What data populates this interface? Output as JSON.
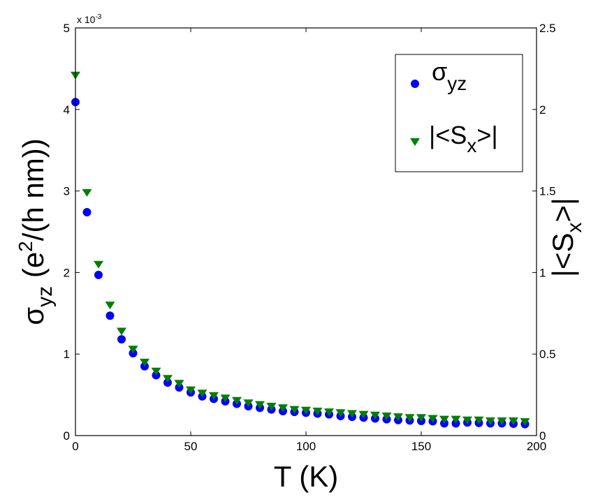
{
  "chart_data": {
    "type": "scatter",
    "title": "",
    "xlabel": "T (K)",
    "ylabel_left": {
      "main": "σ",
      "sub": "yz",
      "rest": " (e",
      "sup": "2",
      "tail": "/(h nm))"
    },
    "ylabel_right": {
      "main": "|<S",
      "sub": "x",
      "tail": ">|"
    },
    "left_exponent": {
      "base": "x 10",
      "exp": "-3"
    },
    "xlim": [
      0,
      200
    ],
    "ylim_left": [
      0,
      5
    ],
    "ylim_right": [
      0,
      2.5
    ],
    "x_ticks": [
      "0",
      "50",
      "100",
      "150",
      "200"
    ],
    "left_ticks": [
      "0",
      "1",
      "2",
      "3",
      "4",
      "5"
    ],
    "right_ticks": [
      "0",
      "0.5",
      "1",
      "1.5",
      "2",
      "2.5"
    ],
    "grid": false,
    "legend_position": "top-right",
    "x": [
      0,
      5,
      10,
      15,
      20,
      25,
      30,
      35,
      40,
      45,
      50,
      55,
      60,
      65,
      70,
      75,
      80,
      85,
      90,
      95,
      100,
      105,
      110,
      115,
      120,
      125,
      130,
      135,
      140,
      145,
      150,
      155,
      160,
      165,
      170,
      175,
      180,
      185,
      190,
      195
    ],
    "series": [
      {
        "name": "σyz",
        "legend": {
          "main": "σ",
          "sub": "yz"
        },
        "axis": "left",
        "marker": "circle",
        "color": "#0000ff",
        "values": [
          4.09,
          2.74,
          1.97,
          1.47,
          1.18,
          1.01,
          0.85,
          0.74,
          0.65,
          0.59,
          0.53,
          0.48,
          0.45,
          0.42,
          0.39,
          0.36,
          0.34,
          0.32,
          0.3,
          0.29,
          0.28,
          0.27,
          0.26,
          0.24,
          0.23,
          0.22,
          0.21,
          0.2,
          0.19,
          0.185,
          0.18,
          0.175,
          0.15,
          0.15,
          0.16,
          0.155,
          0.15,
          0.15,
          0.145,
          0.14
        ]
      },
      {
        "name": "|<Sx>|",
        "legend": {
          "main": "|<S",
          "sub": "x",
          "tail": ">|"
        },
        "axis": "right",
        "marker": "triangle-down",
        "color": "#008000",
        "values": [
          2.21,
          1.49,
          1.05,
          0.8,
          0.64,
          0.53,
          0.45,
          0.395,
          0.35,
          0.32,
          0.28,
          0.26,
          0.245,
          0.23,
          0.215,
          0.2,
          0.19,
          0.18,
          0.17,
          0.16,
          0.155,
          0.15,
          0.145,
          0.14,
          0.135,
          0.13,
          0.125,
          0.12,
          0.115,
          0.11,
          0.11,
          0.105,
          0.1,
          0.1,
          0.095,
          0.095,
          0.09,
          0.09,
          0.09,
          0.085
        ]
      }
    ]
  }
}
